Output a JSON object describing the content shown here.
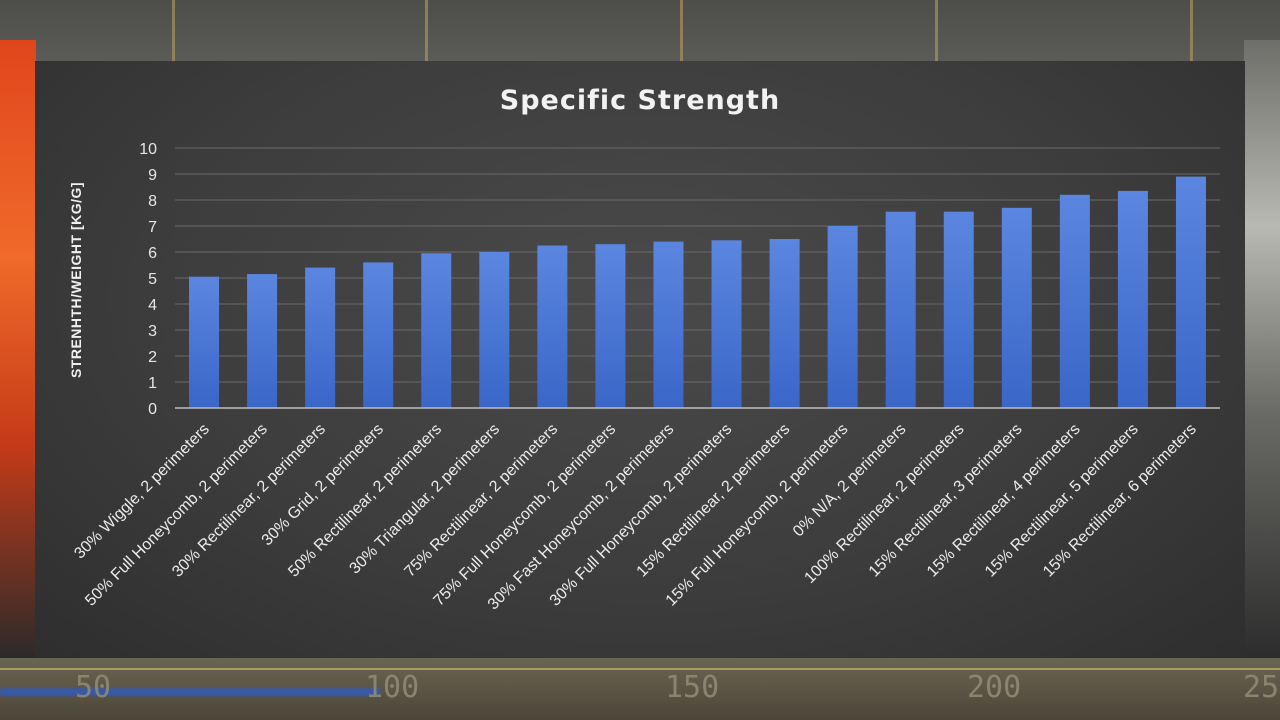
{
  "chart_data": {
    "type": "bar",
    "title": "Specific Strength",
    "xlabel": "",
    "ylabel": "STRENHTH/WEIGHT [KG/G]",
    "ylim": [
      0,
      10
    ],
    "yticks": [
      0,
      1,
      2,
      3,
      4,
      5,
      6,
      7,
      8,
      9,
      10
    ],
    "grid": true,
    "legend": "none",
    "bar_color": "#4a78d8",
    "categories": [
      "30% Wiggle, 2 perimeters",
      "50% Full Honeycomb, 2 perimeters",
      "30% Rectilinear, 2 perimeters",
      "30% Grid, 2 perimeters",
      "50% Rectilinear, 2 perimeters",
      "30% Triangular, 2 perimeters",
      "75% Rectilinear, 2 perimeters",
      "75% Full Honeycomb, 2 perimeters",
      "30% Fast Honeycomb, 2 perimeters",
      "30% Full Honeycomb, 2 perimeters",
      "15% Rectilinear, 2 perimeters",
      "15% Full Honeycomb, 2 perimeters",
      "0% N/A, 2 perimeters",
      "100% Rectilinear, 2 perimeters",
      "15% Rectilinear, 3 perimeters",
      "15% Rectilinear, 4 perimeters",
      "15% Rectilinear, 5 perimeters",
      "15% Rectilinear, 6 perimeters"
    ],
    "values": [
      5.05,
      5.15,
      5.4,
      5.6,
      5.95,
      6.0,
      6.25,
      6.3,
      6.4,
      6.45,
      6.5,
      7.0,
      7.55,
      7.55,
      7.7,
      8.2,
      8.35,
      8.9
    ]
  },
  "background": {
    "ruler_numbers": [
      "50",
      "100",
      "150",
      "200",
      "25"
    ]
  }
}
